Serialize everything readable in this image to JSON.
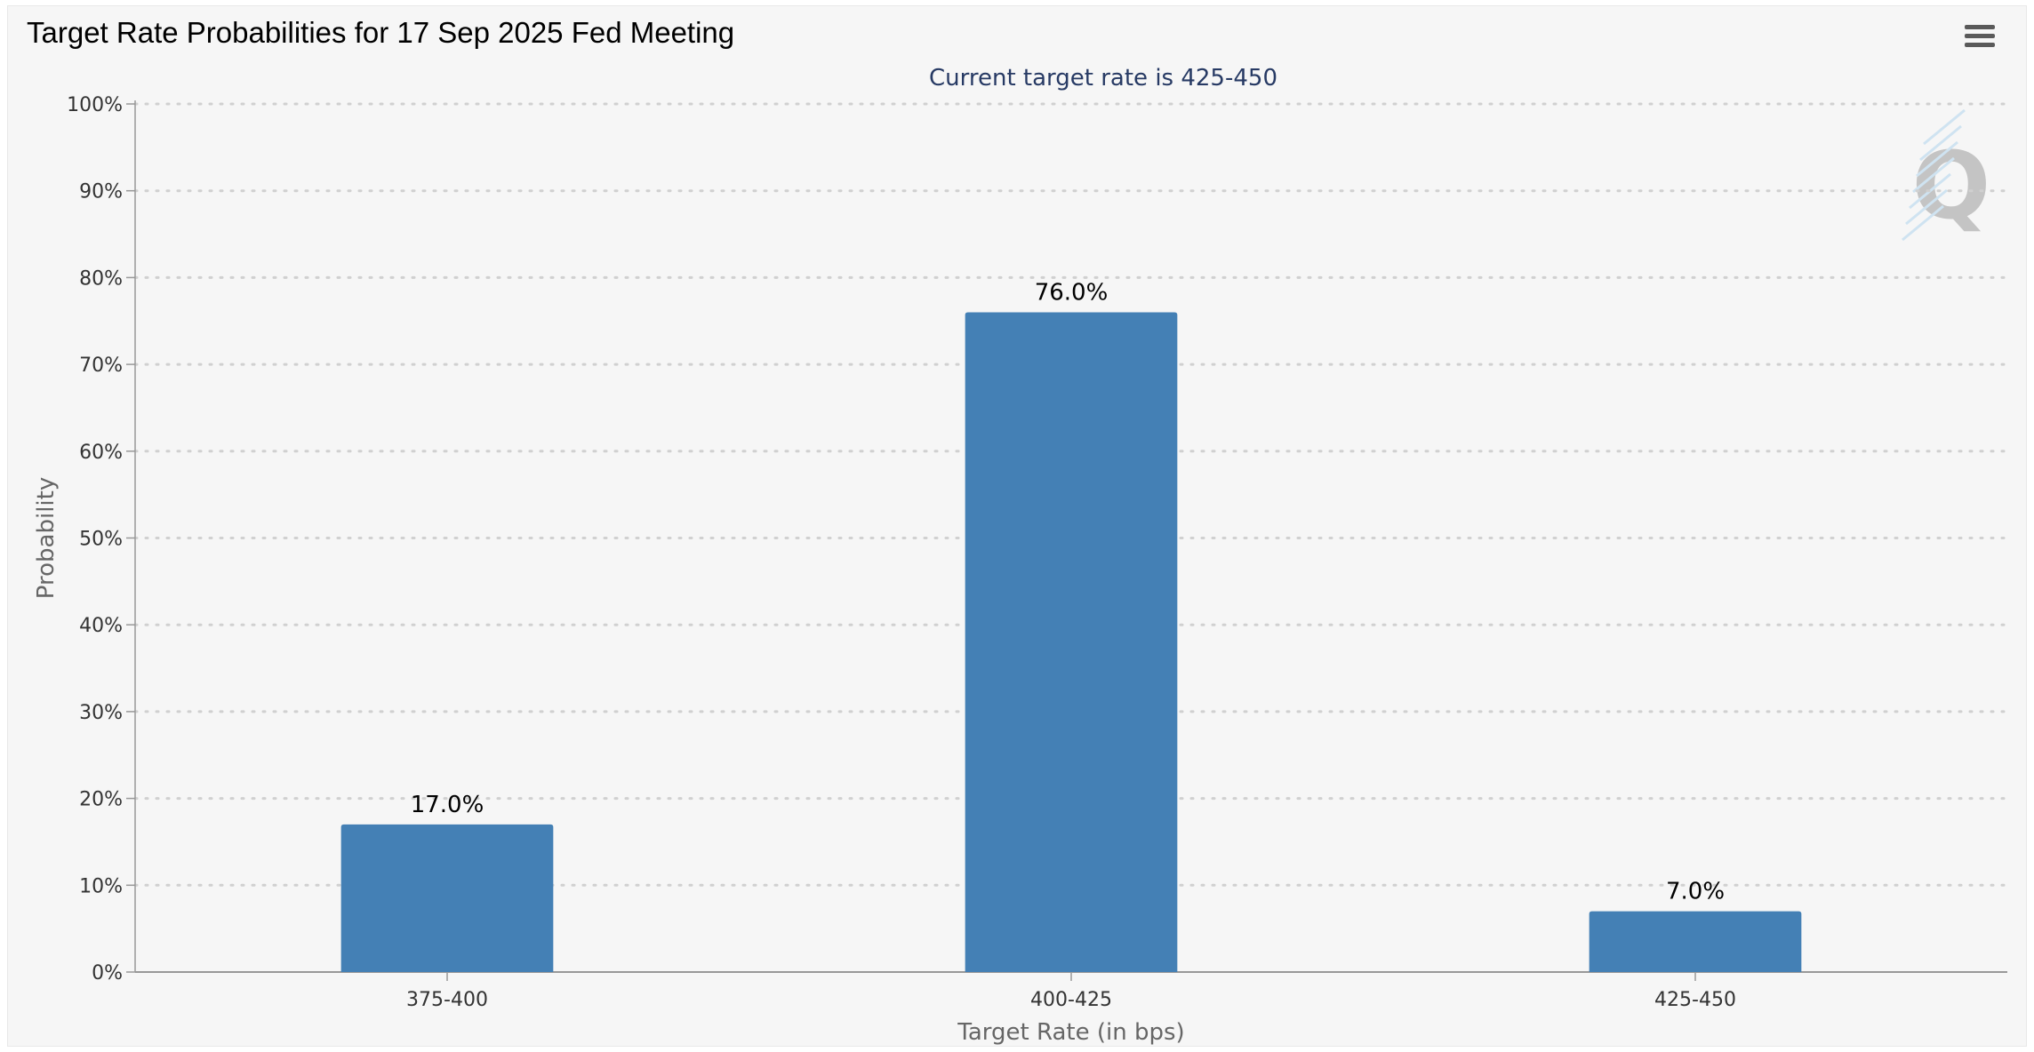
{
  "header": {
    "title": "Target Rate Probabilities for 17 Sep 2025 Fed Meeting",
    "menu_icon": "hamburger-menu-icon"
  },
  "watermark": {
    "text": "Q",
    "icon": "quikstrike-logo-icon"
  },
  "chart_data": {
    "type": "bar",
    "title": "Target Rate Probabilities for 17 Sep 2025 Fed Meeting",
    "subtitle": "Current target rate is 425-450",
    "xlabel": "Target Rate (in bps)",
    "ylabel": "Probability",
    "categories": [
      "375-400",
      "400-425",
      "425-450"
    ],
    "values": [
      17.0,
      76.0,
      7.0
    ],
    "data_labels": [
      "17.0%",
      "76.0%",
      "7.0%"
    ],
    "ylim": [
      0,
      100
    ],
    "yticks": [
      0,
      10,
      20,
      30,
      40,
      50,
      60,
      70,
      80,
      90,
      100
    ],
    "ytick_labels": [
      "0%",
      "10%",
      "20%",
      "30%",
      "40%",
      "50%",
      "60%",
      "70%",
      "80%",
      "90%",
      "100%"
    ],
    "grid": true,
    "legend": "none",
    "colors": {
      "bar": "#4480b5",
      "subtitle": "#273a64",
      "axis_text": "#333333",
      "axis_title": "#666666",
      "grid": "#d0d0d0"
    }
  }
}
